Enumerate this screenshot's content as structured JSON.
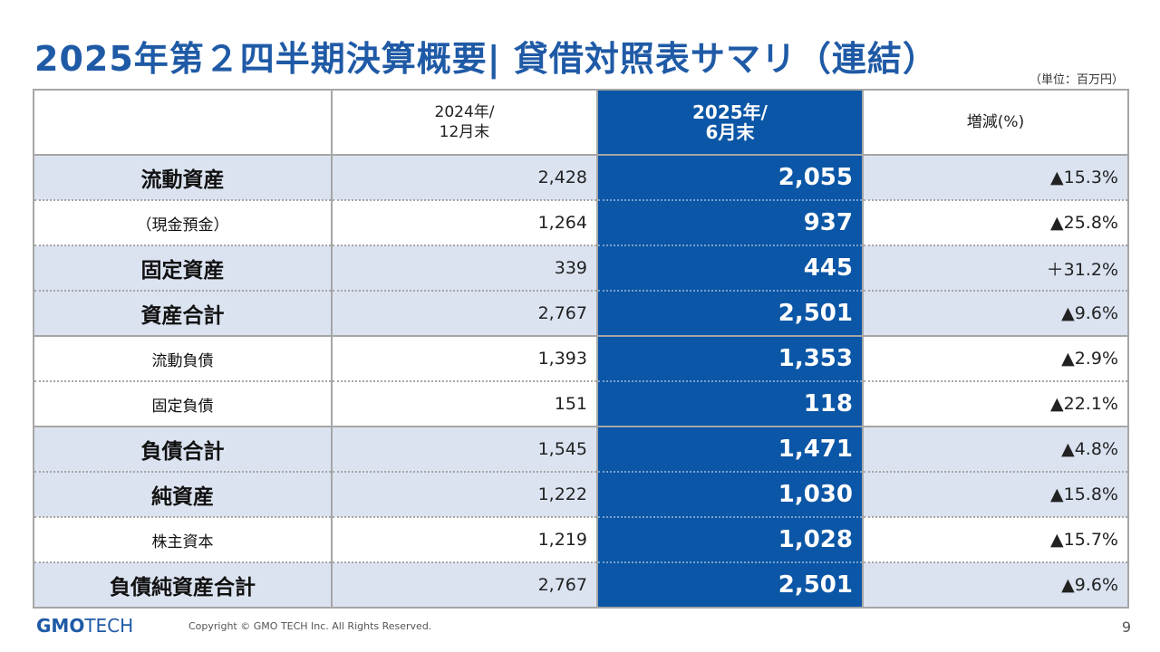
{
  "title": "2025年第２四半期決算概要| 貸借対照表サマリ（連結）",
  "unit": "（単位：百万円）",
  "columns": {
    "label": "",
    "prev_line1": "2024年/",
    "prev_line2": "12月末",
    "curr_line1": "2025年/",
    "curr_line2": "6月末",
    "change": "増減(%)"
  },
  "rows": [
    {
      "label": "流動資産",
      "prev": "2,428",
      "curr": "2,055",
      "change": "▲15.3%"
    },
    {
      "label": "（現金預金）",
      "prev": "1,264",
      "curr": "937",
      "change": "▲25.8%"
    },
    {
      "label": "固定資産",
      "prev": "339",
      "curr": "445",
      "change": "＋31.2%"
    },
    {
      "label": "資産合計",
      "prev": "2,767",
      "curr": "2,501",
      "change": "▲9.6%"
    },
    {
      "label": "流動負債",
      "prev": "1,393",
      "curr": "1,353",
      "change": "▲2.9%"
    },
    {
      "label": "固定負債",
      "prev": "151",
      "curr": "118",
      "change": "▲22.1%"
    },
    {
      "label": "負債合計",
      "prev": "1,545",
      "curr": "1,471",
      "change": "▲4.8%"
    },
    {
      "label": "純資産",
      "prev": "1,222",
      "curr": "1,030",
      "change": "▲15.8%"
    },
    {
      "label": "株主資本",
      "prev": "1,219",
      "curr": "1,028",
      "change": "▲15.7%"
    },
    {
      "label": "負債純資産合計",
      "prev": "2,767",
      "curr": "2,501",
      "change": "▲9.6%"
    }
  ],
  "footer": {
    "logo_gmo": "GMO",
    "logo_tech": "TECH",
    "copyright": "Copyright © GMO TECH Inc. All Rights Reserved.",
    "page": "9"
  },
  "colors": {
    "brand_blue": "#1f5aa6",
    "highlight_blue": "#0b56a6",
    "row_shade": "#dbe3f1"
  }
}
